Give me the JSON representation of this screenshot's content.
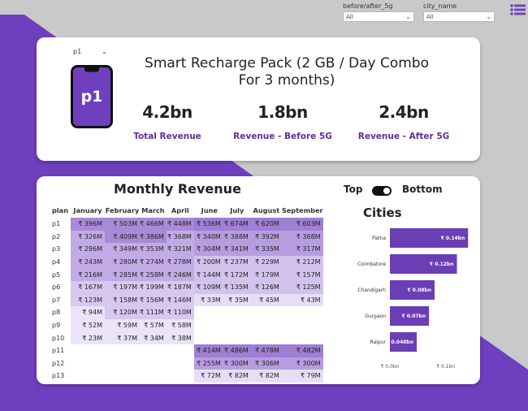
{
  "filters": [
    {
      "label": "before/after_5g",
      "value": "All"
    },
    {
      "label": "city_name",
      "value": "All"
    }
  ],
  "plan_select": {
    "value": "p1"
  },
  "phone": {
    "label": "p1"
  },
  "title": "Smart Recharge Pack (2 GB / Day Combo For 3 months)",
  "kpis": [
    {
      "value": "4.2bn",
      "label": "Total Revenue"
    },
    {
      "value": "1.8bn",
      "label": "Revenue - Before 5G"
    },
    {
      "value": "2.4bn",
      "label": "Revenue - After 5G"
    }
  ],
  "monthly": {
    "title": "Monthly Revenue",
    "toggle": {
      "left": "Top",
      "right": "Bottom"
    },
    "plan_header": "plan",
    "months": [
      "January",
      "February",
      "March",
      "April",
      "June",
      "July",
      "August",
      "September"
    ],
    "rows": [
      {
        "plan": "p1",
        "values": [
          "₹ 396M",
          "₹ 503M",
          "₹ 466M",
          "₹ 448M",
          "₹ 536M",
          "₹ 674M",
          "₹ 620M",
          "₹ 603M"
        ]
      },
      {
        "plan": "p2",
        "values": [
          "₹ 326M",
          "₹ 409M",
          "₹ 386M",
          "₹ 368M",
          "₹ 340M",
          "₹ 388M",
          "₹ 392M",
          "₹ 368M"
        ]
      },
      {
        "plan": "p3",
        "values": [
          "₹ 296M",
          "₹ 349M",
          "₹ 353M",
          "₹ 321M",
          "₹ 304M",
          "₹ 341M",
          "₹ 335M",
          "₹ 317M"
        ]
      },
      {
        "plan": "p4",
        "values": [
          "₹ 243M",
          "₹ 280M",
          "₹ 274M",
          "₹ 278M",
          "₹ 200M",
          "₹ 237M",
          "₹ 229M",
          "₹ 212M"
        ]
      },
      {
        "plan": "p5",
        "values": [
          "₹ 216M",
          "₹ 285M",
          "₹ 258M",
          "₹ 246M",
          "₹ 144M",
          "₹ 172M",
          "₹ 179M",
          "₹ 157M"
        ]
      },
      {
        "plan": "p6",
        "values": [
          "₹ 167M",
          "₹ 197M",
          "₹ 199M",
          "₹ 187M",
          "₹ 109M",
          "₹ 135M",
          "₹ 126M",
          "₹ 125M"
        ]
      },
      {
        "plan": "p7",
        "values": [
          "₹ 123M",
          "₹ 158M",
          "₹ 156M",
          "₹ 146M",
          "₹ 33M",
          "₹ 35M",
          "₹ 45M",
          "₹ 43M"
        ]
      },
      {
        "plan": "p8",
        "values": [
          "₹ 94M",
          "₹ 120M",
          "₹ 111M",
          "₹ 110M",
          "",
          "",
          "",
          ""
        ]
      },
      {
        "plan": "p9",
        "values": [
          "₹ 52M",
          "₹ 59M",
          "₹ 57M",
          "₹ 58M",
          "",
          "",
          "",
          ""
        ]
      },
      {
        "plan": "p10",
        "values": [
          "₹ 23M",
          "₹ 37M",
          "₹ 34M",
          "₹ 38M",
          "",
          "",
          "",
          ""
        ]
      },
      {
        "plan": "p11",
        "values": [
          "",
          "",
          "",
          "",
          "₹ 414M",
          "₹ 486M",
          "₹ 478M",
          "₹ 482M"
        ]
      },
      {
        "plan": "p12",
        "values": [
          "",
          "",
          "",
          "",
          "₹ 255M",
          "₹ 300M",
          "₹ 306M",
          "₹ 300M"
        ]
      },
      {
        "plan": "p13",
        "values": [
          "",
          "",
          "",
          "",
          "₹ 72M",
          "₹ 82M",
          "₹ 82M",
          "₹ 79M"
        ]
      }
    ]
  },
  "chart_data": {
    "type": "bar",
    "orientation": "horizontal",
    "title": "Cities",
    "categories": [
      "Patna",
      "Coimbatore",
      "Chandigarh",
      "Gurgaon",
      "Raipur"
    ],
    "values": [
      0.14,
      0.12,
      0.08,
      0.07,
      0.048
    ],
    "data_labels": [
      "₹ 0.14bn",
      "₹ 0.12bn",
      "₹ 0.08bn",
      "₹ 0.07bn",
      "₹ 0.048bn"
    ],
    "x_ticks": [
      "₹ 0.0bn",
      "₹ 0.1bn"
    ],
    "xlim": [
      0,
      0.16
    ],
    "bar_color": "#6a3fb5"
  },
  "colors": {
    "accent": "#6a3fb5",
    "purple_bg": "#7040c0",
    "label": "#5b2fa0"
  }
}
